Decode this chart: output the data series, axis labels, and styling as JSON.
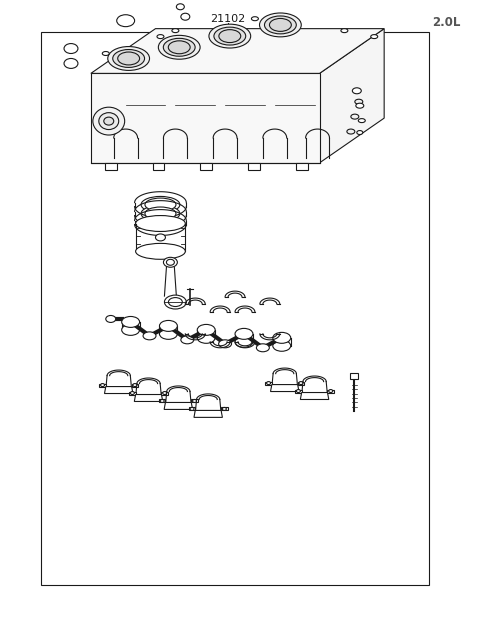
{
  "title": "2.0L",
  "part_number": "21102",
  "background_color": "#ffffff",
  "border_color": "#000000",
  "line_color": "#1a1a1a",
  "title_color": "#555555",
  "fig_width": 4.8,
  "fig_height": 6.22,
  "dpi": 100
}
